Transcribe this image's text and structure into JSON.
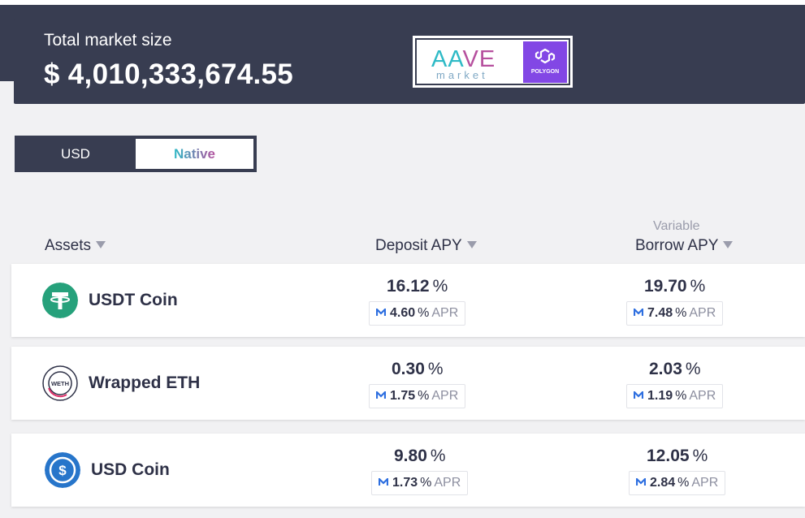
{
  "header": {
    "title": "Total market size",
    "value": "$ 4,010,333,674.55"
  },
  "logo": {
    "aave_part1": "AA",
    "aave_part2": "VE",
    "market": "market",
    "network": "POLYGON"
  },
  "currency_switch": {
    "options": [
      "USD",
      "Native"
    ],
    "selected": "Native"
  },
  "table": {
    "columns": {
      "assets": "Assets",
      "deposit": "Deposit APY",
      "borrow_sub": "Variable",
      "borrow": "Borrow APY"
    },
    "rows": [
      {
        "name": "USDT Coin",
        "deposit_apy": "16.12",
        "deposit_apr": "4.60",
        "borrow_apy": "19.70",
        "borrow_apr": "7.48"
      },
      {
        "name": "Wrapped ETH",
        "icon_text": "WETH",
        "deposit_apy": "0.30",
        "deposit_apr": "1.75",
        "borrow_apy": "2.03",
        "borrow_apr": "1.19"
      },
      {
        "name": "USD Coin",
        "deposit_apy": "9.80",
        "deposit_apr": "1.73",
        "borrow_apy": "12.05",
        "borrow_apr": "2.84"
      }
    ],
    "percent": "%",
    "apr_label": "APR"
  },
  "colors": {
    "dark": "#383d51",
    "aave_teal": "#2ebac6",
    "aave_purple": "#b6509e",
    "polygon": "#8247e5",
    "tether": "#26a17b",
    "usdc": "#2775ca"
  }
}
